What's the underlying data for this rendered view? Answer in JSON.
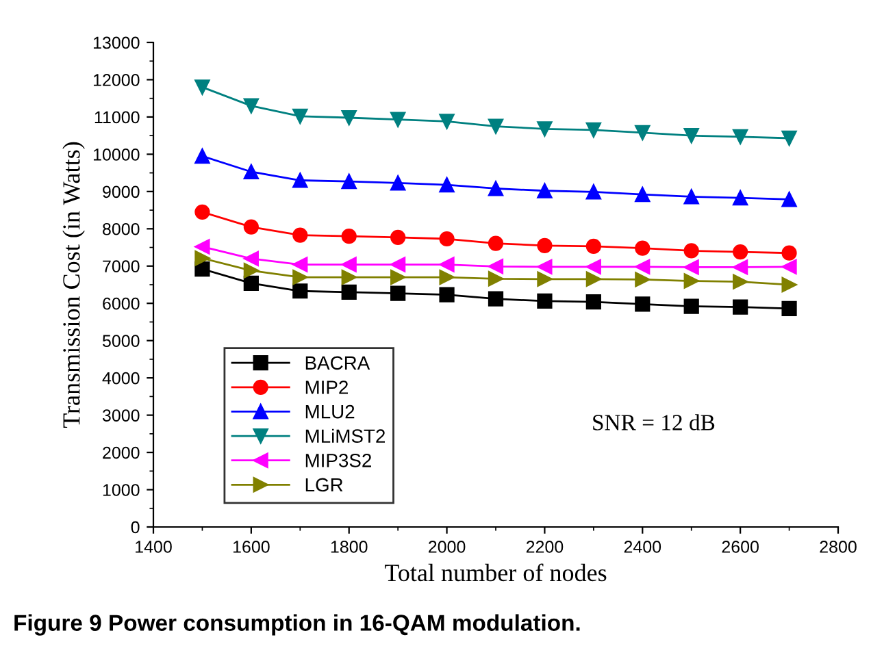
{
  "chart_data": {
    "type": "line",
    "xlabel": "Total number of nodes",
    "ylabel": "Transmission Cost (in Watts)",
    "x": [
      1500,
      1600,
      1700,
      1800,
      1900,
      2000,
      2100,
      2200,
      2300,
      2400,
      2500,
      2600,
      2700
    ],
    "series": [
      {
        "name": "BACRA",
        "color": "#000000",
        "marker": "square",
        "values": [
          6920,
          6540,
          6330,
          6300,
          6270,
          6230,
          6120,
          6060,
          6040,
          5980,
          5920,
          5900,
          5860
        ]
      },
      {
        "name": "MIP2",
        "color": "#ff0000",
        "marker": "circle",
        "values": [
          8450,
          8050,
          7830,
          7800,
          7770,
          7730,
          7610,
          7550,
          7530,
          7480,
          7410,
          7380,
          7350
        ]
      },
      {
        "name": "MLU2",
        "color": "#0000ff",
        "marker": "triangle",
        "values": [
          9950,
          9530,
          9300,
          9270,
          9230,
          9180,
          9080,
          9020,
          8990,
          8920,
          8860,
          8830,
          8790
        ]
      },
      {
        "name": "MLiMST2",
        "color": "#008080",
        "marker": "triangle_down",
        "values": [
          11800,
          11300,
          11020,
          10980,
          10930,
          10880,
          10750,
          10680,
          10650,
          10580,
          10500,
          10470,
          10430
        ]
      },
      {
        "name": "MIP3S2",
        "color": "#ff00ff",
        "marker": "triangle_left",
        "values": [
          7520,
          7200,
          7040,
          7040,
          7040,
          7040,
          6990,
          6980,
          6980,
          6980,
          6970,
          6970,
          6980
        ]
      },
      {
        "name": "LGR",
        "color": "#808000",
        "marker": "triangle_right",
        "values": [
          7210,
          6880,
          6700,
          6700,
          6700,
          6700,
          6660,
          6650,
          6650,
          6640,
          6600,
          6580,
          6500
        ]
      }
    ],
    "xlim": [
      1400,
      2800
    ],
    "xticks": [
      1400,
      1600,
      1800,
      2000,
      2200,
      2400,
      2600,
      2800
    ],
    "ylim": [
      0,
      13000
    ],
    "yticks": [
      0,
      1000,
      2000,
      3000,
      4000,
      5000,
      6000,
      7000,
      8000,
      9000,
      10000,
      11000,
      12000,
      13000
    ],
    "grid": false,
    "legend": "bottom left",
    "line_style": "solid",
    "annotations": [
      "SNR = 12 dB",
      "Figure 9 Power consumption in 16-QAM modulation."
    ]
  }
}
